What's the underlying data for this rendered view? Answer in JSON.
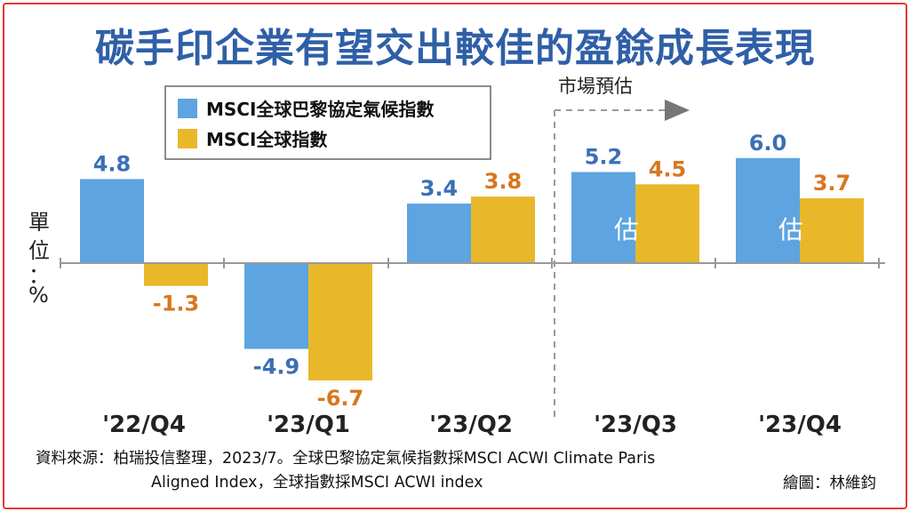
{
  "title": "碳手印企業有望交出較佳的盈餘成長表現",
  "unit_label": [
    "單",
    "位",
    "：",
    "%"
  ],
  "forecast_label": "市場預估",
  "estimate_mark": "估",
  "source_line1": "資料來源：柏瑞投信整理，2023/7。全球巴黎協定氣候指數採MSCI ACWI Climate Paris",
  "source_line2": "Aligned Index，全球指數採MSCI ACWI index",
  "credit": "繪圖：林維鈞",
  "colors": {
    "title": "#2f5fa7",
    "series_climate": "#5da4e0",
    "series_global": "#e8b82a",
    "label_climate": "#3b6fb6",
    "label_global": "#d9761e",
    "border": "#e23a2f"
  },
  "chart_data": {
    "type": "bar",
    "categories": [
      "'22/Q4",
      "'23/Q1",
      "'23/Q2",
      "'23/Q3",
      "'23/Q4"
    ],
    "series": [
      {
        "name": "MSCI全球巴黎協定氣候指數",
        "values": [
          4.8,
          -4.9,
          3.4,
          5.2,
          6.0
        ]
      },
      {
        "name": "MSCI全球指數",
        "values": [
          -1.3,
          -6.7,
          3.8,
          4.5,
          3.7
        ]
      }
    ],
    "forecast_categories": [
      "'23/Q3",
      "'23/Q4"
    ],
    "legend_position": "top-left",
    "grid": false
  }
}
